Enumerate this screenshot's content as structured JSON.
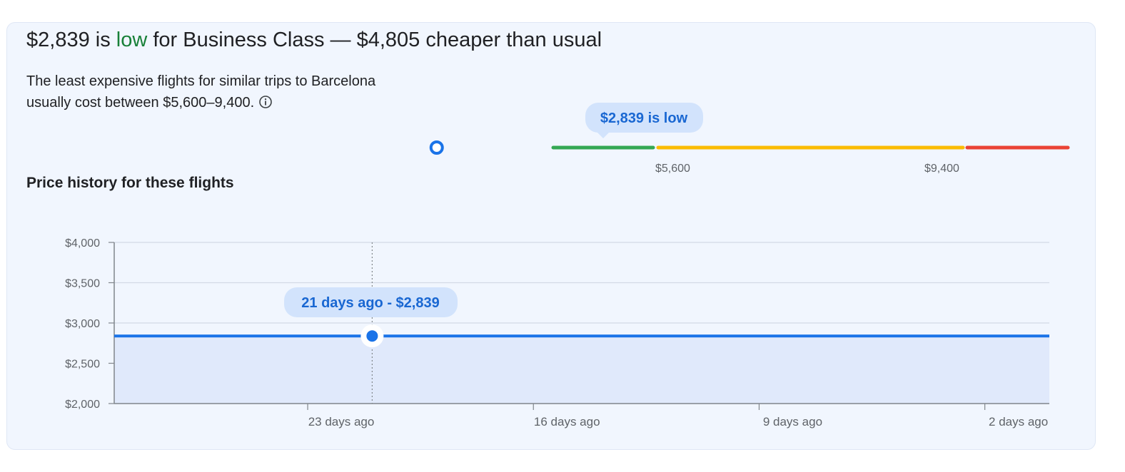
{
  "summary": {
    "price": "$2,839",
    "word_is": "is",
    "level": "low",
    "rest": "for Business Class — $4,805 cheaper than usual",
    "description_line1": "The least expensive flights for similar trips to Barcelona",
    "description_line2": "usually cost between $5,600–9,400."
  },
  "range_bar": {
    "tooltip": "$2,839 is low",
    "low_label": "$5,600",
    "high_label": "$9,400",
    "current_price": 2839,
    "typical_low": 5600,
    "typical_high": 9400,
    "colors": {
      "low": "#34a853",
      "typical": "#fbbc04",
      "high": "#ea4335",
      "marker": "#1a73e8"
    }
  },
  "history": {
    "title": "Price history for these flights",
    "tooltip": "21 days ago - $2,839",
    "chart_data": {
      "type": "area",
      "x_labels": [
        "23 days ago",
        "16 days ago",
        "9 days ago",
        "2 days ago"
      ],
      "x_tick_days_ago": [
        23,
        16,
        9,
        2
      ],
      "y_tick_labels": [
        "$4,000",
        "$3,500",
        "$3,000",
        "$2,500",
        "$2,000"
      ],
      "y_tick_values": [
        4000,
        3500,
        3000,
        2500,
        2000
      ],
      "ylim": [
        2000,
        4000
      ],
      "x_range_days_ago": [
        29,
        0
      ],
      "series": [
        {
          "days_ago": [
            29,
            21,
            0
          ],
          "values": [
            2839,
            2839,
            2839
          ]
        }
      ],
      "highlight": {
        "days_ago": 21,
        "value": 2839
      },
      "grid": true,
      "colors": {
        "line": "#1a73e8",
        "fill": "#e0e9fb",
        "grid": "#d3dae6"
      }
    }
  }
}
